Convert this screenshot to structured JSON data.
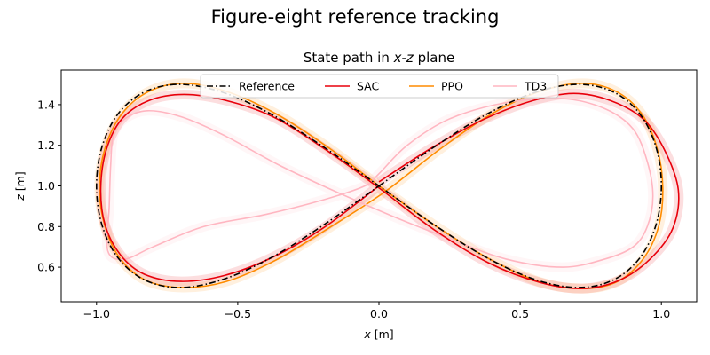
{
  "chart_data": {
    "type": "line",
    "suptitle": "Figure-eight reference tracking",
    "title_prefix": "State path in ",
    "title_var_x": "x",
    "title_sep": "-",
    "title_var_z": "z",
    "title_suffix": " plane",
    "xlabel_var": "x",
    "xlabel_unit": " [m]",
    "ylabel_var": "z",
    "ylabel_unit": " [m]",
    "xlim": [
      -1.125,
      1.125
    ],
    "ylim": [
      0.43,
      1.57
    ],
    "xticks": [
      -1.0,
      -0.5,
      0.0,
      0.5,
      1.0
    ],
    "xtick_labels": [
      "−1.0",
      "−0.5",
      "0.0",
      "0.5",
      "1.0"
    ],
    "yticks": [
      0.6,
      0.8,
      1.0,
      1.2,
      1.4
    ],
    "ytick_labels": [
      "0.6",
      "0.8",
      "1.0",
      "1.2",
      "1.4"
    ],
    "legend_position": "top-center",
    "grid": false,
    "colors": {
      "Reference": "#000000",
      "SAC": "#e8000b",
      "PPO": "#ff8c00",
      "TD3": "#ffb6c1"
    },
    "series": [
      {
        "name": "Reference",
        "style": "dash-dot",
        "x": [
          0.0,
          0.195,
          0.383,
          0.556,
          0.707,
          0.831,
          0.924,
          0.981,
          1.0,
          0.981,
          0.924,
          0.831,
          0.707,
          0.556,
          0.383,
          0.195,
          0.0,
          -0.195,
          -0.383,
          -0.556,
          -0.707,
          -0.831,
          -0.924,
          -0.981,
          -1.0,
          -0.981,
          -0.924,
          -0.831,
          -0.707,
          -0.556,
          -0.383,
          -0.195,
          0.0
        ],
        "y": [
          1.0,
          1.191,
          1.354,
          1.462,
          1.5,
          1.462,
          1.354,
          1.191,
          1.0,
          0.809,
          0.646,
          0.538,
          0.5,
          0.538,
          0.646,
          0.809,
          1.0,
          1.191,
          1.354,
          1.462,
          1.5,
          1.462,
          1.354,
          1.191,
          1.0,
          0.809,
          0.646,
          0.538,
          0.5,
          0.538,
          0.646,
          0.809,
          1.0
        ]
      },
      {
        "name": "SAC",
        "x": [
          0.0,
          0.19,
          0.375,
          0.545,
          0.69,
          0.82,
          0.935,
          1.01,
          1.06,
          1.04,
          0.96,
          0.85,
          0.72,
          0.57,
          0.39,
          0.2,
          0.0,
          -0.19,
          -0.375,
          -0.54,
          -0.69,
          -0.815,
          -0.91,
          -0.965,
          -0.985,
          -0.97,
          -0.915,
          -0.83,
          -0.7,
          -0.545,
          -0.375,
          -0.19,
          0.0
        ],
        "y": [
          1.02,
          1.19,
          1.33,
          1.42,
          1.455,
          1.42,
          1.33,
          1.18,
          0.98,
          0.79,
          0.64,
          0.535,
          0.495,
          0.525,
          0.62,
          0.78,
          0.99,
          1.18,
          1.34,
          1.42,
          1.45,
          1.42,
          1.33,
          1.18,
          0.99,
          0.81,
          0.66,
          0.565,
          0.53,
          0.56,
          0.65,
          0.8,
          1.0
        ]
      },
      {
        "name": "PPO",
        "x": [
          0.02,
          0.215,
          0.4,
          0.57,
          0.72,
          0.84,
          0.93,
          0.985,
          1.005,
          0.99,
          0.935,
          0.845,
          0.725,
          0.575,
          0.405,
          0.215,
          0.02,
          -0.175,
          -0.365,
          -0.54,
          -0.69,
          -0.815,
          -0.91,
          -0.97,
          -0.99,
          -0.97,
          -0.915,
          -0.825,
          -0.695,
          -0.54,
          -0.365,
          -0.175,
          0.02
        ],
        "y": [
          0.97,
          1.18,
          1.355,
          1.465,
          1.505,
          1.465,
          1.355,
          1.185,
          0.99,
          0.8,
          0.64,
          0.53,
          0.495,
          0.525,
          0.63,
          0.79,
          0.98,
          1.185,
          1.355,
          1.465,
          1.505,
          1.465,
          1.355,
          1.185,
          0.99,
          0.8,
          0.64,
          0.535,
          0.5,
          0.53,
          0.635,
          0.795,
          0.97
        ]
      },
      {
        "name": "TD3",
        "x": [
          0.0,
          0.1,
          0.25,
          0.45,
          0.65,
          0.8,
          0.9,
          0.95,
          0.97,
          0.95,
          0.9,
          0.8,
          0.65,
          0.45,
          0.25,
          0.05,
          -0.15,
          -0.35,
          -0.55,
          -0.7,
          -0.82,
          -0.9,
          -0.94,
          -0.95,
          -0.955,
          -0.96,
          -0.9,
          -0.8,
          -0.62,
          -0.4,
          -0.2,
          -0.05,
          0.0
        ],
        "y": [
          1.06,
          1.2,
          1.33,
          1.41,
          1.43,
          1.38,
          1.28,
          1.12,
          0.95,
          0.8,
          0.7,
          0.64,
          0.6,
          0.64,
          0.74,
          0.85,
          0.97,
          1.1,
          1.25,
          1.34,
          1.37,
          1.33,
          1.25,
          1.1,
          0.9,
          0.68,
          0.64,
          0.7,
          0.8,
          0.86,
          0.93,
          1.0,
          1.06
        ]
      }
    ]
  }
}
